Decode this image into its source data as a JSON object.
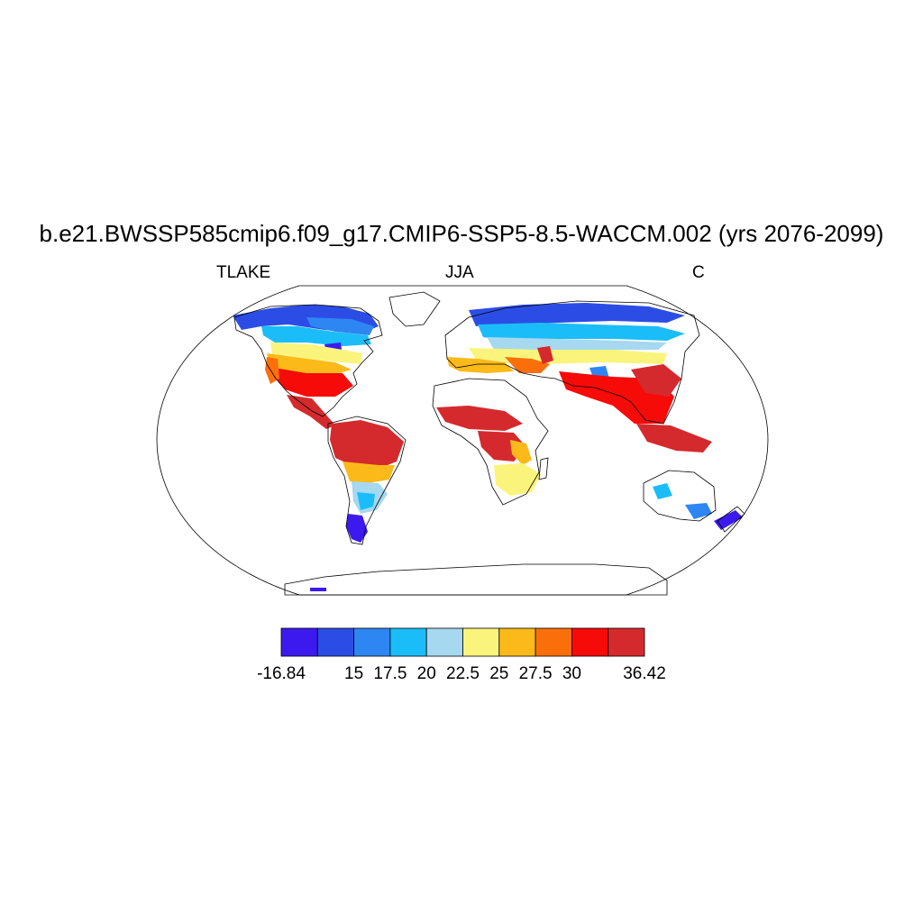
{
  "title": "b.e21.BWSSP585cmip6.f09_g17.CMIP6-SSP5-8.5-WACCM.002 (yrs 2076-2099)",
  "left_string": "TLAKE",
  "center_string": "JJA",
  "right_string": "C",
  "colorbar": {
    "colors": [
      "#3c1aef",
      "#2c4de5",
      "#2e86f2",
      "#1bbdf9",
      "#a6d8ef",
      "#fbf47c",
      "#fbba19",
      "#fb6f0a",
      "#f60b09",
      "#d52a2d"
    ],
    "labels": [
      "-16.84",
      "15",
      "17.5",
      "20",
      "22.5",
      "25",
      "27.5",
      "30",
      "36.42"
    ]
  }
}
